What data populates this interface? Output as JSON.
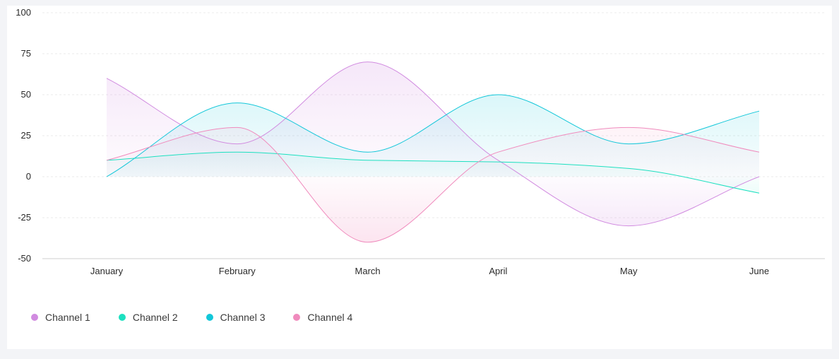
{
  "chart_data": {
    "type": "area",
    "categories": [
      "January",
      "February",
      "March",
      "April",
      "May",
      "June"
    ],
    "ylim": [
      -50,
      100
    ],
    "yticks": [
      100,
      75,
      50,
      25,
      0,
      -25,
      -50
    ],
    "grid": true,
    "legend_position": "bottom-left",
    "series": [
      {
        "name": "Channel 1",
        "color": "#d18be0",
        "values": [
          60,
          20,
          70,
          10,
          -30,
          0
        ]
      },
      {
        "name": "Channel 2",
        "color": "#1de0c0",
        "values": [
          10,
          15,
          10,
          9,
          5,
          -10
        ]
      },
      {
        "name": "Channel 3",
        "color": "#12c7d9",
        "values": [
          0,
          45,
          15,
          50,
          20,
          40
        ]
      },
      {
        "name": "Channel 4",
        "color": "#f08bbd",
        "values": [
          10,
          30,
          -40,
          15,
          30,
          15
        ]
      }
    ]
  }
}
